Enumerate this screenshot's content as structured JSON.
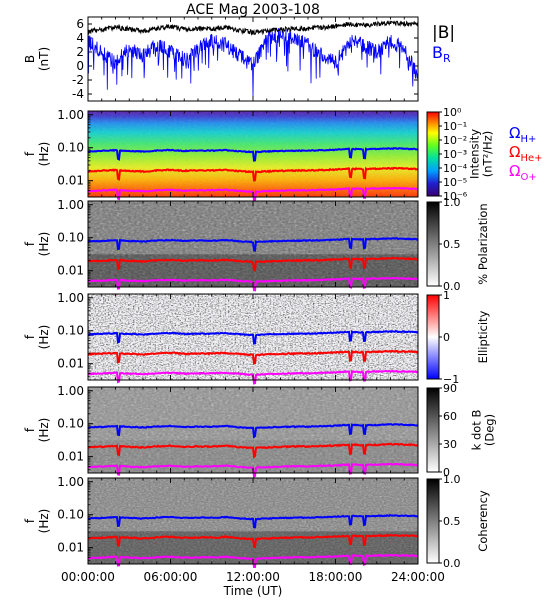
{
  "title": "ACE Mag 2003-108",
  "x_axis": {
    "label": "Time (UT)",
    "ticks": [
      "00:00:00",
      "06:00:00",
      "12:00:00",
      "18:00:00",
      "24:00:00"
    ],
    "range_hours": [
      0,
      24
    ]
  },
  "colors": {
    "B_total": "#000000",
    "B_R": "#0000ff",
    "H_plus": "#0000ff",
    "He_plus": "#ff0000",
    "O_plus": "#ff00ff"
  },
  "chart_data": [
    {
      "type": "line",
      "panel": "magnetic-field",
      "ylabel": "B (nT)",
      "ylabel_lines": [
        "B",
        "(nT)"
      ],
      "ylim": [
        -5,
        7
      ],
      "yticks": [
        6,
        4,
        2,
        0,
        -2,
        -4
      ],
      "legend": [
        "|B|",
        "B_R"
      ],
      "legend_labels": {
        "total": "|B|",
        "radial_main": "B",
        "radial_sub": "R"
      },
      "legend_placement": "right",
      "series": [
        {
          "name": "|B|",
          "color": "#000000",
          "x_hours": [
            0,
            1,
            2,
            3,
            4,
            5,
            6,
            7,
            8,
            9,
            10,
            11,
            12,
            13,
            14,
            15,
            16,
            17,
            18,
            19,
            20,
            21,
            22,
            23,
            24
          ],
          "values": [
            4.9,
            5.2,
            5.5,
            5.3,
            5.0,
            5.4,
            5.6,
            5.2,
            5.4,
            5.3,
            5.6,
            5.1,
            4.8,
            5.0,
            5.2,
            5.3,
            5.4,
            5.5,
            5.7,
            6.0,
            5.8,
            6.0,
            6.2,
            6.1,
            5.9
          ]
        },
        {
          "name": "B_R",
          "color": "#0000ff",
          "x_hours": [
            0,
            1,
            2,
            3,
            4,
            5,
            6,
            7,
            8,
            9,
            10,
            11,
            12,
            13,
            14,
            15,
            16,
            17,
            18,
            19,
            20,
            21,
            22,
            23,
            24
          ],
          "values": [
            3.5,
            2.0,
            0.5,
            2.5,
            1.5,
            3.0,
            2.0,
            1.0,
            2.5,
            3.5,
            3.0,
            1.5,
            0.0,
            4.0,
            4.5,
            4.0,
            3.0,
            1.5,
            0.5,
            3.5,
            3.0,
            2.0,
            3.5,
            2.5,
            -1.5
          ]
        }
      ]
    },
    {
      "type": "heatmap",
      "panel": "intensity",
      "ylabel": "f (Hz)",
      "ylabel_lines": [
        "f",
        "(Hz)"
      ],
      "yscale": "log",
      "ylim": [
        0.003,
        1.3
      ],
      "yticks": [
        "1.00",
        "0.10",
        "0.01"
      ],
      "colorbar": {
        "label": "Intensity (nT²/Hz)",
        "label_lines": [
          "Intensity",
          "(nT²/Hz)"
        ],
        "scale": "log",
        "ticks": [
          "10⁰",
          "10⁻¹",
          "10⁻²",
          "10⁻³",
          "10⁻⁴",
          "10⁻⁵",
          "10⁻⁶"
        ],
        "colormap": "rainbow"
      },
      "legend": [
        "Ω_H+",
        "Ω_He+",
        "Ω_O+"
      ],
      "legend_labels": {
        "H": {
          "main": "Ω",
          "sub": "H+"
        },
        "He": {
          "main": "Ω",
          "sub": "He+"
        },
        "O": {
          "main": "Ω",
          "sub": "O+"
        }
      }
    },
    {
      "type": "heatmap",
      "panel": "polarization",
      "ylabel": "f (Hz)",
      "ylabel_lines": [
        "f",
        "(Hz)"
      ],
      "yscale": "log",
      "yticks": [
        "1.00",
        "0.10",
        "0.01"
      ],
      "colorbar": {
        "label": "% Polarization",
        "label_lines": [
          "% Polarization"
        ],
        "ticks": [
          "1.0",
          "0.5",
          "0.0"
        ],
        "colormap": "gray"
      }
    },
    {
      "type": "heatmap",
      "panel": "ellipticity",
      "ylabel": "f (Hz)",
      "ylabel_lines": [
        "f",
        "(Hz)"
      ],
      "yscale": "log",
      "yticks": [
        "1.00",
        "0.10",
        "0.01"
      ],
      "colorbar": {
        "label": "Ellipticity",
        "label_lines": [
          "Ellipticity"
        ],
        "ticks": [
          "1",
          "0",
          "−1"
        ],
        "colormap": "red-white-blue"
      }
    },
    {
      "type": "heatmap",
      "panel": "k-dot-b",
      "ylabel": "f (Hz)",
      "ylabel_lines": [
        "f",
        "(Hz)"
      ],
      "yscale": "log",
      "yticks": [
        "1.00",
        "0.10",
        "0.01"
      ],
      "colorbar": {
        "label": "k dot B (Deg)",
        "label_lines": [
          "k dot B",
          "(Deg)"
        ],
        "ticks": [
          "90",
          "60",
          "30",
          "0"
        ],
        "colormap": "gray"
      }
    },
    {
      "type": "heatmap",
      "panel": "coherency",
      "ylabel": "f (Hz)",
      "ylabel_lines": [
        "f",
        "(Hz)"
      ],
      "yscale": "log",
      "yticks": [
        "1.00",
        "0.10",
        "0.01"
      ],
      "colorbar": {
        "label": "Coherency",
        "label_lines": [
          "Coherency"
        ],
        "ticks": [
          "1.0",
          "0.5",
          "0.0"
        ],
        "colormap": "gray"
      }
    }
  ],
  "gyrofrequency_lines": {
    "x_hours": [
      0,
      1,
      2,
      3,
      4,
      5,
      6,
      7,
      8,
      9,
      10,
      11,
      12,
      13,
      14,
      15,
      16,
      17,
      18,
      19,
      20,
      21,
      22,
      23,
      24
    ],
    "H_plus_hz": [
      0.078,
      0.08,
      0.084,
      0.08,
      0.077,
      0.082,
      0.085,
      0.08,
      0.082,
      0.081,
      0.085,
      0.078,
      0.074,
      0.077,
      0.08,
      0.081,
      0.082,
      0.084,
      0.087,
      0.092,
      0.089,
      0.092,
      0.095,
      0.093,
      0.09
    ],
    "He_plus_hz": [
      0.0195,
      0.02,
      0.021,
      0.02,
      0.019,
      0.0205,
      0.0213,
      0.02,
      0.0205,
      0.0203,
      0.0213,
      0.0195,
      0.0185,
      0.019,
      0.02,
      0.0203,
      0.0205,
      0.021,
      0.0218,
      0.023,
      0.0223,
      0.023,
      0.0238,
      0.0233,
      0.0225
    ],
    "O_plus_hz": [
      0.0049,
      0.005,
      0.0053,
      0.005,
      0.0048,
      0.0051,
      0.0053,
      0.005,
      0.0051,
      0.0051,
      0.0053,
      0.0049,
      0.0046,
      0.0048,
      0.005,
      0.0051,
      0.0051,
      0.0053,
      0.0054,
      0.0058,
      0.0056,
      0.0058,
      0.0059,
      0.0058,
      0.0056
    ],
    "dips_hours": [
      2.2,
      12.1,
      19.1,
      20.1
    ]
  }
}
